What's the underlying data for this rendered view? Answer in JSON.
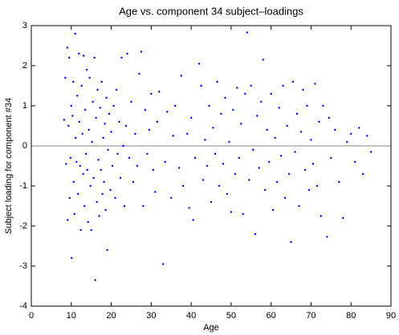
{
  "chart_data": {
    "type": "scatter",
    "title": "Age vs. component 34 subject–loadings",
    "x_label": "Age",
    "y_label": "Subject loading for component #34",
    "color": "#0000ff",
    "reference_line_color": "#808080",
    "reference_line_y": 0,
    "xlim": [
      0,
      90
    ],
    "xticks": [
      0,
      10,
      20,
      30,
      40,
      50,
      60,
      70,
      80,
      90
    ],
    "ylim": [
      -4,
      3
    ],
    "yticks": [
      -4,
      -3,
      -2,
      -1,
      0,
      1,
      2,
      3
    ],
    "x": [
      8.2,
      8.5,
      8.7,
      9.0,
      9.1,
      9.3,
      9.5,
      9.6,
      9.8,
      10.0,
      10.1,
      10.3,
      10.5,
      10.6,
      10.8,
      11.0,
      11.1,
      11.3,
      11.5,
      11.7,
      11.9,
      12.0,
      12.2,
      12.4,
      12.6,
      12.8,
      13.0,
      13.1,
      13.3,
      13.5,
      13.7,
      13.9,
      14.0,
      14.2,
      14.4,
      14.6,
      14.8,
      15.0,
      15.2,
      15.4,
      15.6,
      15.8,
      16.0,
      16.2,
      16.4,
      16.6,
      16.8,
      17.0,
      17.2,
      17.4,
      17.6,
      17.8,
      18.0,
      18.2,
      18.4,
      18.6,
      18.8,
      19.0,
      19.2,
      19.5,
      19.8,
      20.0,
      20.3,
      20.6,
      21.0,
      21.3,
      21.6,
      22.0,
      22.3,
      22.6,
      23.0,
      23.3,
      23.7,
      24.0,
      24.5,
      25.0,
      25.5,
      26.0,
      26.5,
      27.0,
      27.5,
      28.0,
      28.5,
      29.0,
      29.5,
      30.0,
      30.5,
      31.0,
      31.5,
      32.0,
      33.0,
      33.5,
      34.0,
      35.0,
      35.5,
      36.0,
      37.0,
      37.5,
      38.0,
      39.0,
      39.5,
      40.0,
      40.5,
      41.0,
      42.0,
      42.5,
      43.0,
      43.5,
      44.0,
      44.5,
      45.0,
      45.5,
      46.0,
      46.5,
      47.0,
      47.5,
      48.0,
      48.5,
      49.0,
      49.5,
      50.0,
      50.5,
      51.0,
      51.5,
      52.0,
      52.5,
      53.0,
      53.5,
      54.0,
      54.5,
      55.0,
      55.5,
      56.0,
      56.5,
      57.0,
      57.5,
      58.0,
      58.5,
      59.0,
      59.5,
      60.0,
      60.5,
      61.0,
      61.5,
      62.0,
      62.5,
      63.0,
      63.5,
      64.0,
      64.5,
      65.0,
      65.5,
      66.0,
      66.5,
      67.0,
      67.5,
      68.0,
      68.5,
      69.0,
      69.5,
      70.0,
      70.5,
      71.0,
      71.5,
      72.0,
      72.5,
      73.0,
      74.0,
      74.5,
      75.0,
      76.0,
      77.0,
      78.0,
      79.0,
      80.0,
      81.0,
      82.0,
      83.0,
      84.0,
      85.0
    ],
    "y": [
      0.65,
      1.7,
      -0.45,
      2.45,
      -1.85,
      0.5,
      2.2,
      -1.3,
      -0.3,
      1.0,
      -2.8,
      0.75,
      1.6,
      -0.9,
      -1.7,
      2.8,
      0.2,
      -0.4,
      1.25,
      -1.2,
      2.3,
      0.6,
      -0.5,
      -2.1,
      1.5,
      0.3,
      -0.7,
      2.25,
      -1.5,
      0.9,
      -0.2,
      1.9,
      -0.6,
      -1.9,
      0.4,
      1.7,
      -1.0,
      -2.1,
      0.1,
      1.1,
      -0.8,
      2.2,
      -3.35,
      0.7,
      -1.4,
      1.4,
      -0.35,
      -1.75,
      0.95,
      -0.6,
      1.6,
      -1.2,
      0.2,
      -0.9,
      0.55,
      -1.6,
      1.2,
      -2.6,
      -0.1,
      0.8,
      -1.1,
      0.35,
      -0.5,
      1.0,
      -1.3,
      1.4,
      -0.2,
      0.6,
      -0.8,
      2.2,
      0.0,
      -1.5,
      0.5,
      2.3,
      -0.3,
      1.1,
      -0.9,
      0.3,
      -0.5,
      1.8,
      2.35,
      -1.5,
      0.9,
      -0.2,
      0.4,
      1.3,
      -0.6,
      -1.15,
      0.6,
      1.35,
      -2.95,
      -0.4,
      0.85,
      -1.3,
      0.25,
      1.0,
      -0.55,
      1.75,
      -1.0,
      0.3,
      -1.55,
      0.7,
      -1.85,
      -0.3,
      2.05,
      1.5,
      -0.85,
      0.15,
      -0.5,
      1.0,
      -1.4,
      0.45,
      -0.2,
      1.6,
      -1.0,
      0.8,
      -0.45,
      1.2,
      -1.2,
      0.1,
      -1.65,
      0.9,
      -0.7,
      1.45,
      -0.3,
      0.55,
      -1.7,
      1.3,
      2.83,
      -0.85,
      1.5,
      -0.1,
      -2.2,
      0.75,
      -0.55,
      1.1,
      2.15,
      -1.1,
      0.4,
      -0.4,
      1.3,
      -1.6,
      0.2,
      -0.9,
      0.95,
      -0.25,
      1.5,
      -1.3,
      0.5,
      -0.7,
      -2.4,
      1.6,
      -0.15,
      0.8,
      -1.5,
      0.35,
      1.4,
      -0.6,
      1.0,
      -1.1,
      0.15,
      -0.45,
      1.55,
      -1.0,
      0.6,
      -1.75,
      1.0,
      -2.27,
      0.7,
      -0.3,
      0.4,
      -0.9,
      -1.8,
      0.1,
      0.3,
      -0.4,
      0.45,
      -0.7,
      0.25,
      -0.15
    ]
  }
}
